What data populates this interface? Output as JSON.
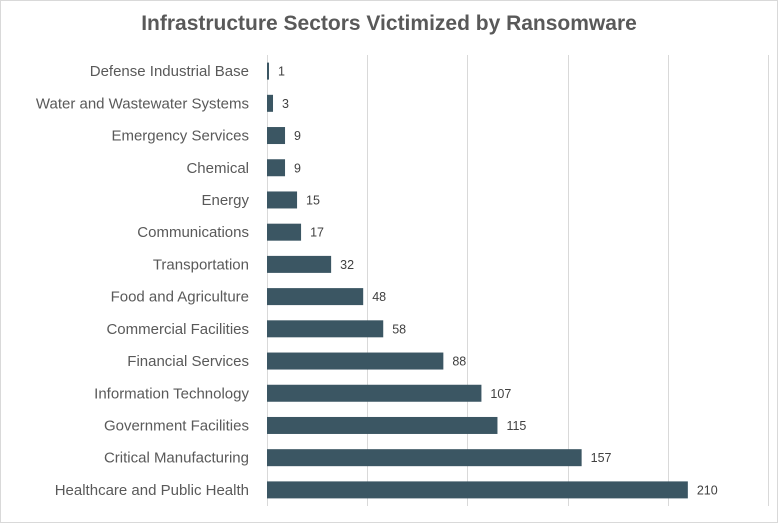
{
  "chart_data": {
    "type": "bar",
    "orientation": "horizontal",
    "title": "Infrastructure Sectors Victimized by Ransomware",
    "xlabel": "",
    "ylabel": "",
    "categories": [
      "Defense Industrial Base",
      "Water and Wastewater Systems",
      "Emergency Services",
      "Chemical",
      "Energy",
      "Communications",
      "Transportation",
      "Food and Agriculture",
      "Commercial Facilities",
      "Financial Services",
      "Information Technology",
      "Government Facilities",
      "Critical Manufacturing",
      "Healthcare and Public Health"
    ],
    "values": [
      1,
      3,
      9,
      9,
      15,
      17,
      32,
      48,
      58,
      88,
      107,
      115,
      157,
      210
    ],
    "xlim": [
      0,
      250
    ],
    "grid": true,
    "legend": "none",
    "bar_color": "#3b5663",
    "data_labels": true
  }
}
